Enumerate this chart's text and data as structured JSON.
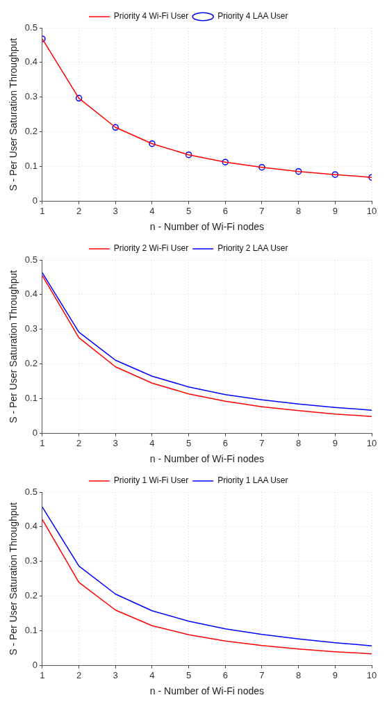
{
  "chart_data": [
    {
      "type": "line",
      "xlabel": "n - Number of Wi-Fi nodes",
      "ylabel": "S - Per User Saturation Throughput",
      "x": [
        1,
        2,
        3,
        4,
        5,
        6,
        7,
        8,
        9,
        10
      ],
      "xlim": [
        1,
        10
      ],
      "xticks": [
        1,
        2,
        3,
        4,
        5,
        6,
        7,
        8,
        9,
        10
      ],
      "ylim": [
        0,
        0.5
      ],
      "yticks": [
        0,
        0.1,
        0.2,
        0.3,
        0.4,
        0.5
      ],
      "grid": true,
      "legend": "top",
      "series": [
        {
          "name": "Priority 4 Wi-Fi User",
          "color": "#ff0000",
          "values": [
            0.468,
            0.297,
            0.213,
            0.166,
            0.134,
            0.113,
            0.098,
            0.086,
            0.077,
            0.069
          ]
        },
        {
          "name": "Priority 4 LAA User",
          "color": "#0000ff",
          "type": "scatter",
          "marker": "circle",
          "values": [
            0.468,
            0.297,
            0.213,
            0.166,
            0.134,
            0.113,
            0.098,
            0.086,
            0.077,
            0.069
          ]
        }
      ]
    },
    {
      "type": "line",
      "xlabel": "n - Number of Wi-Fi nodes",
      "ylabel": "S - Per User Saturation Throughput",
      "x": [
        1,
        2,
        3,
        4,
        5,
        6,
        7,
        8,
        9,
        10
      ],
      "xlim": [
        1,
        10
      ],
      "xticks": [
        1,
        2,
        3,
        4,
        5,
        6,
        7,
        8,
        9,
        10
      ],
      "ylim": [
        0,
        0.5
      ],
      "yticks": [
        0,
        0.1,
        0.2,
        0.3,
        0.4,
        0.5
      ],
      "grid": true,
      "legend": "top",
      "series": [
        {
          "name": "Priority 2 Wi-Fi User",
          "color": "#ff0000",
          "values": [
            0.455,
            0.276,
            0.192,
            0.145,
            0.114,
            0.093,
            0.077,
            0.066,
            0.056,
            0.049
          ]
        },
        {
          "name": "Priority 2 LAA User",
          "color": "#0000ff",
          "values": [
            0.463,
            0.292,
            0.211,
            0.165,
            0.134,
            0.112,
            0.097,
            0.085,
            0.075,
            0.067
          ]
        }
      ]
    },
    {
      "type": "line",
      "xlabel": "n - Number of Wi-Fi nodes",
      "ylabel": "S - Per User Saturation Throughput",
      "x": [
        1,
        2,
        3,
        4,
        5,
        6,
        7,
        8,
        9,
        10
      ],
      "xlim": [
        1,
        10
      ],
      "xticks": [
        1,
        2,
        3,
        4,
        5,
        6,
        7,
        8,
        9,
        10
      ],
      "ylim": [
        0,
        0.5
      ],
      "yticks": [
        0,
        0.1,
        0.2,
        0.3,
        0.4,
        0.5
      ],
      "grid": true,
      "legend": "top",
      "series": [
        {
          "name": "Priority 1 Wi-Fi User",
          "color": "#ff0000",
          "values": [
            0.421,
            0.24,
            0.16,
            0.115,
            0.089,
            0.071,
            0.058,
            0.048,
            0.04,
            0.034
          ]
        },
        {
          "name": "Priority 1 LAA User",
          "color": "#0000ff",
          "values": [
            0.457,
            0.287,
            0.206,
            0.158,
            0.128,
            0.106,
            0.09,
            0.077,
            0.066,
            0.057
          ]
        }
      ]
    }
  ]
}
